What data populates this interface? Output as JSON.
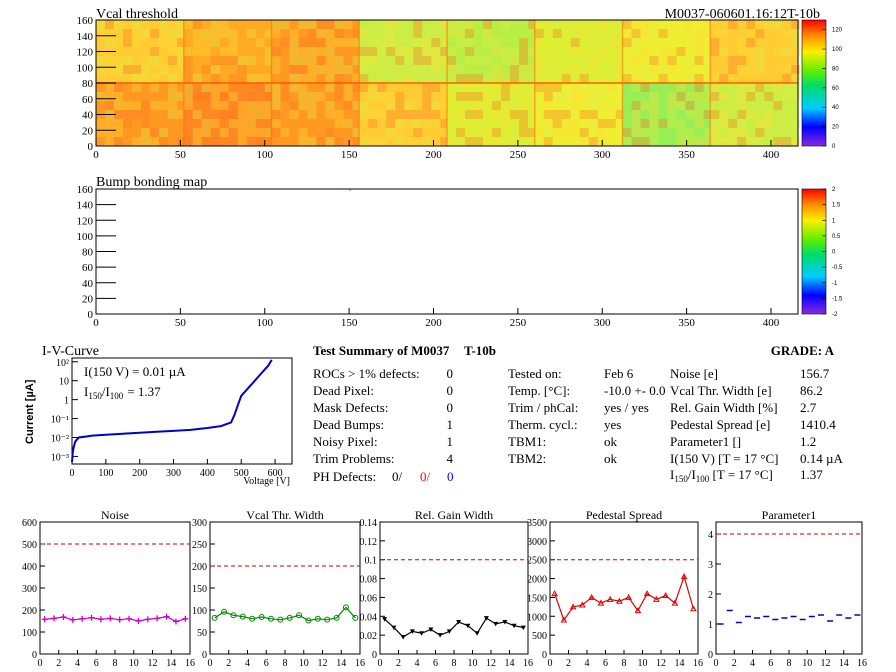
{
  "header": {
    "map1_title": "Vcal threshold",
    "module_id": "M0037-060601.16:12T-10b",
    "map2_title": "Bump bonding map"
  },
  "map1": {
    "x_ticks": [
      "0",
      "50",
      "100",
      "150",
      "200",
      "250",
      "300",
      "350",
      "400"
    ],
    "y_ticks": [
      "0",
      "20",
      "40",
      "60",
      "80",
      "100",
      "120",
      "140",
      "160"
    ],
    "palette_ticks": [
      "0",
      "20",
      "40",
      "60",
      "80",
      "100",
      "120"
    ],
    "x_range": [
      0,
      416
    ],
    "y_range": [
      0,
      160
    ],
    "z_range": [
      0,
      130
    ]
  },
  "map2": {
    "x_ticks": [
      "0",
      "50",
      "100",
      "150",
      "200",
      "250",
      "300",
      "350",
      "400"
    ],
    "y_ticks": [
      "0",
      "20",
      "40",
      "60",
      "80",
      "100",
      "120",
      "140",
      "160"
    ],
    "palette_ticks": [
      "-2",
      "-1.5",
      "-1",
      "-0.5",
      "0",
      "0.5",
      "1",
      "1.5",
      "2"
    ],
    "x_range": [
      0,
      416
    ],
    "y_range": [
      0,
      160
    ],
    "z_range": [
      -2,
      2
    ]
  },
  "iv": {
    "title": "I-V-Curve",
    "ylabel": "Current [µA]",
    "xlabel": "Voltage [V]",
    "annotation_1": "I(150 V) = 0.01 µA",
    "annotation_2_main": "I",
    "annotation_2_sub1": "150",
    "annotation_2_mid": "/I",
    "annotation_2_sub2": "100",
    "annotation_2_value": "=  1.37",
    "x_ticks": [
      "0",
      "100",
      "200",
      "300",
      "400",
      "500",
      "600"
    ],
    "y_ticks": [
      "10⁻³",
      "10⁻²",
      "10⁻¹",
      "1",
      "10",
      "10²"
    ]
  },
  "summary": {
    "title": "Test Summary of M0037",
    "grade_tag": "T-10b",
    "grade": "GRADE:  A",
    "left": [
      {
        "label": "ROCs > 1% defects:",
        "value": "0"
      },
      {
        "label": "Dead Pixel:",
        "value": "0"
      },
      {
        "label": "Mask Defects:",
        "value": "0"
      },
      {
        "label": "Dead Bumps:",
        "value": "1"
      },
      {
        "label": "Noisy Pixel:",
        "value": "1"
      },
      {
        "label": "Trim Problems:",
        "value": "4"
      }
    ],
    "ph_label": "PH Defects:",
    "ph_values": [
      "0/",
      "0/",
      "0"
    ],
    "middle": [
      {
        "label": "Tested on:",
        "value": "Feb 6"
      },
      {
        "label": "Temp. [°C]:",
        "value": "-10.0 +- 0.0"
      },
      {
        "label": "Trim / phCal:",
        "value": "yes / yes"
      },
      {
        "label": "Therm. cycl.:",
        "value": "yes"
      },
      {
        "label": "TBM1:",
        "value": "ok"
      },
      {
        "label": "TBM2:",
        "value": "ok"
      }
    ],
    "right": [
      {
        "label": "Noise [e]",
        "value": "156.7"
      },
      {
        "label": "Vcal Thr. Width [e]",
        "value": "86.2"
      },
      {
        "label": "Rel. Gain Width [%]",
        "value": "2.7"
      },
      {
        "label": "Pedestal Spread [e]",
        "value": "1410.4"
      },
      {
        "label": "Parameter1 []",
        "value": "1.2"
      },
      {
        "label": "I(150 V)  [T = 17 °C]",
        "value": "0.14 µA"
      }
    ],
    "ratio_label_main": "I",
    "ratio_sub1": "150",
    "ratio_mid": "/I",
    "ratio_sub2": "100",
    "ratio_rest": "  [T = 17 °C]",
    "ratio_value": "1.37",
    "colors": {
      "ph_red": "#ff0000",
      "ph_blue": "#0000ff"
    }
  },
  "chart_data": [
    {
      "type": "line",
      "title": "Noise",
      "x": [
        0,
        1,
        2,
        3,
        4,
        5,
        6,
        7,
        8,
        9,
        10,
        11,
        12,
        13,
        14,
        15
      ],
      "values": [
        158,
        162,
        168,
        155,
        160,
        165,
        158,
        162,
        156,
        160,
        150,
        158,
        162,
        170,
        148,
        160
      ],
      "ylim": [
        0,
        600
      ],
      "yticks": [
        "0",
        "100",
        "200",
        "300",
        "400",
        "500",
        "600"
      ],
      "threshold": 500,
      "color": "#cc00cc",
      "marker": "plus"
    },
    {
      "type": "line",
      "title": "Vcal Thr. Width",
      "x": [
        0,
        1,
        2,
        3,
        4,
        5,
        6,
        7,
        8,
        9,
        10,
        11,
        12,
        13,
        14,
        15
      ],
      "values": [
        82,
        96,
        88,
        85,
        80,
        84,
        80,
        78,
        82,
        88,
        76,
        80,
        78,
        82,
        106,
        82
      ],
      "ylim": [
        0,
        300
      ],
      "yticks": [
        "0",
        "50",
        "100",
        "150",
        "200",
        "250",
        "300"
      ],
      "threshold": 200,
      "color": "#008800",
      "marker": "circle"
    },
    {
      "type": "line",
      "title": "Rel. Gain Width",
      "x": [
        0,
        1,
        2,
        3,
        4,
        5,
        6,
        7,
        8,
        9,
        10,
        11,
        12,
        13,
        14,
        15
      ],
      "values": [
        0.037,
        0.028,
        0.018,
        0.024,
        0.022,
        0.026,
        0.02,
        0.024,
        0.034,
        0.03,
        0.022,
        0.038,
        0.032,
        0.034,
        0.03,
        0.028
      ],
      "ylim": [
        0,
        0.14
      ],
      "yticks": [
        "0",
        "0.02",
        "0.04",
        "0.06",
        "0.08",
        "0.1",
        "0.12",
        "0.14"
      ],
      "threshold": 0.1,
      "color": "#000000",
      "marker": "triangle-down"
    },
    {
      "type": "line",
      "title": "Pedestal Spread",
      "x": [
        0,
        1,
        2,
        3,
        4,
        5,
        6,
        7,
        8,
        9,
        10,
        11,
        12,
        13,
        14,
        15
      ],
      "values": [
        1600,
        900,
        1250,
        1300,
        1500,
        1350,
        1450,
        1400,
        1500,
        1150,
        1600,
        1450,
        1550,
        1350,
        2050,
        1200
      ],
      "ylim": [
        0,
        3500
      ],
      "yticks": [
        "0",
        "500",
        "1000",
        "1500",
        "2000",
        "2500",
        "3000",
        "3500"
      ],
      "threshold": 2500,
      "color": "#dd0000",
      "marker": "triangle-up"
    },
    {
      "type": "scatter",
      "title": "Parameter1",
      "x": [
        0,
        1,
        2,
        3,
        4,
        5,
        6,
        7,
        8,
        9,
        10,
        11,
        12,
        13,
        14,
        15
      ],
      "values": [
        1.0,
        1.45,
        1.05,
        1.25,
        1.2,
        1.25,
        1.15,
        1.2,
        1.25,
        1.15,
        1.25,
        1.3,
        1.1,
        1.3,
        1.2,
        1.3
      ],
      "ylim": [
        0,
        4.4
      ],
      "yticks": [
        "0",
        "1",
        "2",
        "3",
        "4"
      ],
      "threshold": 4,
      "color": "#0000cc",
      "marker": "hbar"
    }
  ],
  "bottom_x_ticks": [
    "0",
    "2",
    "4",
    "6",
    "8",
    "10",
    "12",
    "14",
    "16"
  ]
}
